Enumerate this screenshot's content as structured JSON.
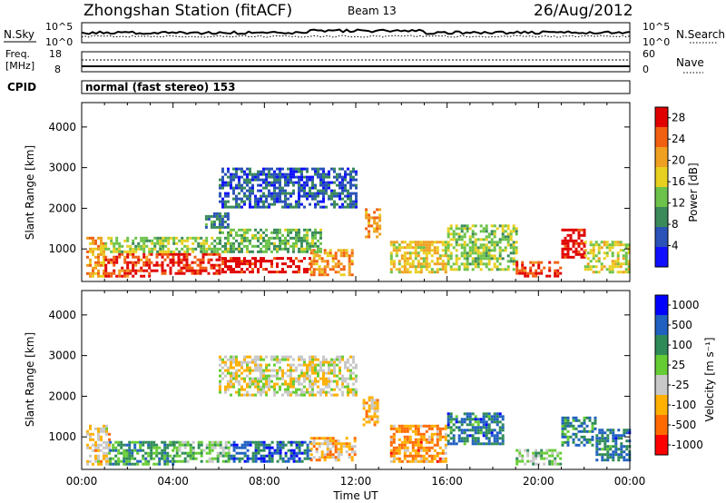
{
  "header": {
    "station": "Zhongshan Station (fitACF)",
    "beam": "Beam 13",
    "date": "26/Aug/2012"
  },
  "strip_nsky": {
    "left_label": "N.Sky",
    "right_label": "N.Search",
    "left_ticks": [
      "10^5",
      "10^0"
    ],
    "right_ticks": [
      "10^5",
      "10^0"
    ]
  },
  "strip_freq": {
    "left_label_1": "Freq.",
    "left_label_2": "[MHz]",
    "right_label": "Nave",
    "left_ticks": [
      "18",
      "8"
    ],
    "right_ticks": [
      "60",
      "0"
    ]
  },
  "cpid": {
    "label": "CPID",
    "mode": "normal (fast stereo) 153"
  },
  "colors": {
    "power_scale": [
      "#1010ff",
      "#2a52b8",
      "#3a8a5a",
      "#6cc24a",
      "#e8d020",
      "#f0a020",
      "#f06010",
      "#e00000"
    ],
    "velocity_scale": [
      "#ff0000",
      "#ff6a00",
      "#ffb000",
      "#c8c8c8",
      "#66cc33",
      "#2e8b57",
      "#2060c0",
      "#0000ff"
    ]
  },
  "chart_data": [
    {
      "type": "heatmap",
      "name": "power-panel",
      "xlabel": "",
      "ylabel": "Slant Range [km]",
      "xlim": [
        0,
        24
      ],
      "ylim": [
        200,
        4600
      ],
      "yticks": [
        "1000",
        "2000",
        "3000",
        "4000"
      ],
      "colorbar": {
        "label": "Power [dB]",
        "ticks": [
          "4",
          "8",
          "12",
          "16",
          "20",
          "24",
          "28"
        ],
        "range": [
          0,
          30
        ]
      },
      "patches": [
        {
          "x": [
            0.2,
            1.0
          ],
          "y": [
            350,
            1300
          ],
          "v": 20
        },
        {
          "x": [
            1.0,
            3.0
          ],
          "y": [
            350,
            900
          ],
          "v": 26
        },
        {
          "x": [
            3.0,
            6.0
          ],
          "y": [
            400,
            900
          ],
          "v": 27
        },
        {
          "x": [
            6.0,
            10.0
          ],
          "y": [
            400,
            800
          ],
          "v": 29
        },
        {
          "x": [
            10.0,
            11.8
          ],
          "y": [
            350,
            1000
          ],
          "v": 22
        },
        {
          "x": [
            1.0,
            6.0
          ],
          "y": [
            900,
            1300
          ],
          "v": 14
        },
        {
          "x": [
            6.0,
            10.5
          ],
          "y": [
            900,
            1500
          ],
          "v": 12
        },
        {
          "x": [
            5.4,
            6.4
          ],
          "y": [
            1500,
            1900
          ],
          "v": 8
        },
        {
          "x": [
            12.4,
            13.0
          ],
          "y": [
            1300,
            2000
          ],
          "v": 22
        },
        {
          "x": [
            13.5,
            16.0
          ],
          "y": [
            400,
            1200
          ],
          "v": 17
        },
        {
          "x": [
            16.0,
            19.0
          ],
          "y": [
            500,
            1600
          ],
          "v": 14
        },
        {
          "x": [
            19.0,
            21.0
          ],
          "y": [
            300,
            700
          ],
          "v": 26
        },
        {
          "x": [
            21.0,
            22.0
          ],
          "y": [
            800,
            1500
          ],
          "v": 29
        },
        {
          "x": [
            22.0,
            24.0
          ],
          "y": [
            400,
            1200
          ],
          "v": 16
        },
        {
          "x": [
            6.0,
            12.0
          ],
          "y": [
            2000,
            3000
          ],
          "v": 6
        }
      ]
    },
    {
      "type": "heatmap",
      "name": "velocity-panel",
      "xlabel": "Time UT",
      "ylabel": "Slant Range [km]",
      "xlim": [
        0,
        24
      ],
      "ylim": [
        200,
        4600
      ],
      "xticks": [
        "00:00",
        "04:00",
        "08:00",
        "12:00",
        "16:00",
        "20:00",
        "00:00"
      ],
      "yticks": [
        "1000",
        "2000",
        "3000",
        "4000"
      ],
      "colorbar": {
        "label": "Velocity [m s⁻¹]",
        "ticks": [
          "1000",
          "500",
          "100",
          "25",
          "-25",
          "-100",
          "-500",
          "-1000"
        ],
        "range": [
          -1200,
          1200
        ]
      },
      "patches": [
        {
          "x": [
            0.2,
            1.2
          ],
          "y": [
            350,
            1300
          ],
          "v": -300
        },
        {
          "x": [
            1.2,
            4.0
          ],
          "y": [
            350,
            900
          ],
          "v": 400
        },
        {
          "x": [
            4.0,
            6.5
          ],
          "y": [
            400,
            900
          ],
          "v": 150
        },
        {
          "x": [
            6.5,
            10.0
          ],
          "y": [
            400,
            900
          ],
          "v": 700
        },
        {
          "x": [
            10.0,
            12.0
          ],
          "y": [
            400,
            1000
          ],
          "v": -400
        },
        {
          "x": [
            12.3,
            13.0
          ],
          "y": [
            1300,
            2000
          ],
          "v": -500
        },
        {
          "x": [
            13.5,
            16.0
          ],
          "y": [
            400,
            1300
          ],
          "v": -600
        },
        {
          "x": [
            16.0,
            18.5
          ],
          "y": [
            800,
            1600
          ],
          "v": 600
        },
        {
          "x": [
            19.0,
            21.0
          ],
          "y": [
            300,
            700
          ],
          "v": 150
        },
        {
          "x": [
            21.0,
            22.5
          ],
          "y": [
            800,
            1500
          ],
          "v": 500
        },
        {
          "x": [
            22.5,
            24.0
          ],
          "y": [
            400,
            1200
          ],
          "v": 600
        },
        {
          "x": [
            6.0,
            12.0
          ],
          "y": [
            2000,
            3000
          ],
          "v": -200
        }
      ]
    }
  ]
}
